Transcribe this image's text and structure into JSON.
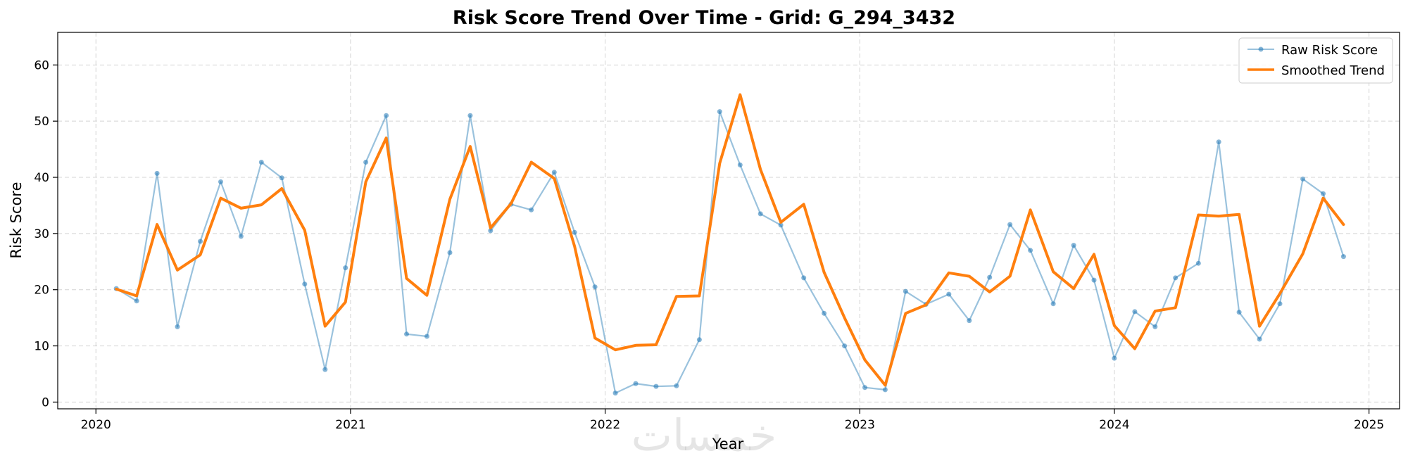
{
  "chart_data": {
    "type": "line",
    "title": "Risk Score Trend Over Time - Grid: G_294_3432",
    "xlabel": "Year",
    "ylabel": "Risk Score",
    "xlim": [
      2019.85,
      2025.12
    ],
    "ylim": [
      -1.2,
      65.8
    ],
    "x_ticks": [
      2020,
      2021,
      2022,
      2023,
      2024,
      2025
    ],
    "x_tick_labels": [
      "2020",
      "2021",
      "2022",
      "2023",
      "2024",
      "2025"
    ],
    "y_ticks": [
      0,
      10,
      20,
      30,
      40,
      50,
      60
    ],
    "y_tick_labels": [
      "0",
      "10",
      "20",
      "30",
      "40",
      "50",
      "60"
    ],
    "grid": true,
    "legend_position": "top-right",
    "x": [
      2020.08,
      2020.16,
      2020.24,
      2020.32,
      2020.41,
      2020.49,
      2020.57,
      2020.65,
      2020.73,
      2020.82,
      2020.9,
      2020.98,
      2021.06,
      2021.14,
      2021.22,
      2021.3,
      2021.39,
      2021.47,
      2021.55,
      2021.63,
      2021.71,
      2021.8,
      2021.88,
      2021.96,
      2022.04,
      2022.12,
      2022.2,
      2022.28,
      2022.37,
      2022.45,
      2022.53,
      2022.61,
      2022.69,
      2022.78,
      2022.86,
      2022.94,
      2023.02,
      2023.1,
      2023.18,
      2023.26,
      2023.35,
      2023.43,
      2023.51,
      2023.59,
      2023.67,
      2023.76,
      2023.84,
      2023.92,
      2024.0,
      2024.08,
      2024.16,
      2024.24,
      2024.33,
      2024.41,
      2024.49,
      2024.57,
      2024.65,
      2024.74,
      2024.82,
      2024.9
    ],
    "series": [
      {
        "name": "Raw Risk Score",
        "color": "#1f77b4",
        "values": [
          20.2,
          18.0,
          40.7,
          13.4,
          28.6,
          39.2,
          29.5,
          42.7,
          39.9,
          21.0,
          5.8,
          23.9,
          42.7,
          51.0,
          12.1,
          11.7,
          26.6,
          51.0,
          30.5,
          35.2,
          34.2,
          40.9,
          30.2,
          20.5,
          1.6,
          3.3,
          2.8,
          2.9,
          11.1,
          51.7,
          42.2,
          33.5,
          31.5,
          22.1,
          15.8,
          10.0,
          2.6,
          2.2,
          19.7,
          17.4,
          19.2,
          14.5,
          22.2,
          31.6,
          27.0,
          17.5,
          27.9,
          21.7,
          7.8,
          16.1,
          13.4,
          22.1,
          24.7,
          46.3,
          16.0,
          11.2,
          17.5,
          39.7,
          37.1,
          25.9
        ]
      },
      {
        "name": "Smoothed Trend",
        "color": "#ff7f0e",
        "values": [
          20.1,
          18.9,
          31.6,
          23.5,
          26.2,
          36.3,
          34.5,
          35.1,
          38.0,
          30.6,
          13.5,
          17.8,
          39.2,
          47.0,
          22.0,
          19.0,
          36.1,
          45.5,
          31.0,
          35.3,
          42.7,
          39.8,
          27.7,
          11.4,
          9.3,
          10.1,
          10.2,
          18.8,
          18.9,
          42.5,
          54.7,
          41.4,
          32.0,
          35.2,
          23.1,
          15.0,
          7.5,
          3.0,
          15.8,
          17.3,
          23.0,
          22.4,
          19.6,
          22.4,
          34.2,
          23.2,
          20.2,
          26.3,
          13.6,
          9.5,
          16.2,
          16.8,
          33.3,
          33.1,
          33.4,
          13.5,
          19.3,
          26.4,
          36.3,
          31.6
        ]
      }
    ]
  },
  "watermark": "خمسات"
}
